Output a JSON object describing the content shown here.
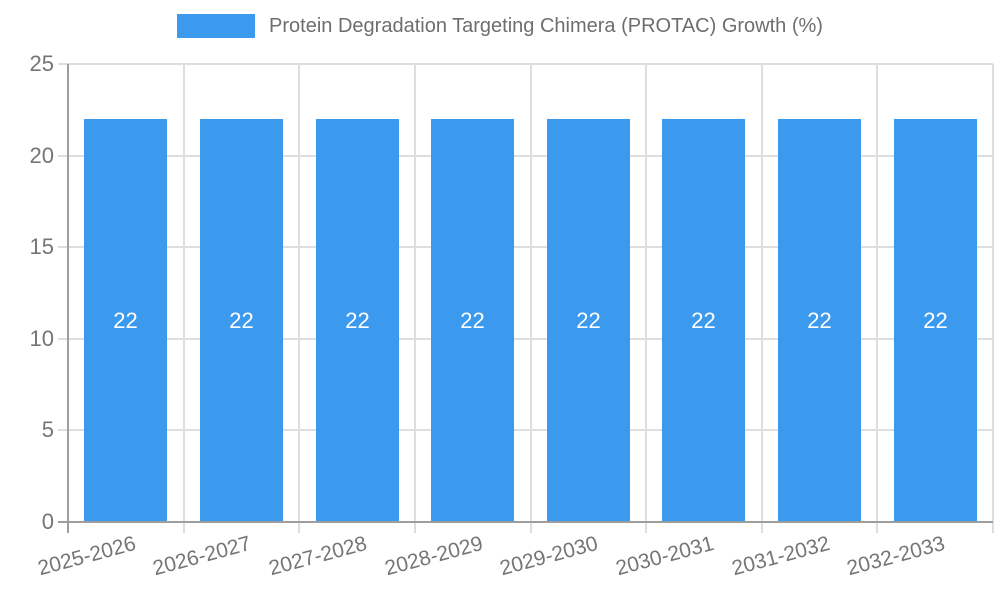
{
  "legend": {
    "label": "Protein Degradation Targeting Chimera (PROTAC) Growth (%)"
  },
  "chart_data": {
    "type": "bar",
    "title": "Protein Degradation Targeting Chimera (PROTAC) Growth (%)",
    "categories": [
      "2025-2026",
      "2026-2027",
      "2027-2028",
      "2028-2029",
      "2029-2030",
      "2030-2031",
      "2031-2032",
      "2032-2033"
    ],
    "values": [
      22,
      22,
      22,
      22,
      22,
      22,
      22,
      22
    ],
    "bar_labels": [
      "22",
      "22",
      "22",
      "22",
      "22",
      "22",
      "22",
      "22"
    ],
    "xlabel": "",
    "ylabel": "",
    "ylim": [
      0,
      25
    ],
    "ytick_step": 5,
    "ytick_labels": [
      "0",
      "5",
      "10",
      "15",
      "20",
      "25"
    ],
    "grid": true,
    "legend_position": "top",
    "colors": {
      "bar": "#3b99ee",
      "bar_label": "#ffffff",
      "grid": "#dedede",
      "axis": "#9e9e9e",
      "tick_text": "#757575",
      "legend_text": "#6e6e6e"
    }
  }
}
